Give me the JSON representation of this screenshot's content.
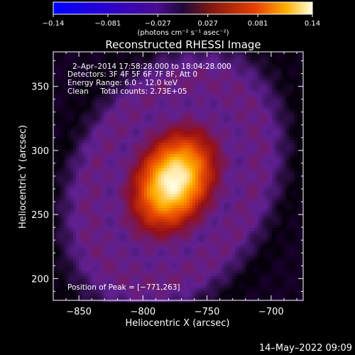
{
  "chart_data": {
    "type": "heatmap",
    "title": "Reconstructed RHESSI Image",
    "xlabel": "Heliocentric X (arcsec)",
    "ylabel": "Heliocentric Y (arcsec)",
    "xlim": [
      -870,
      -675
    ],
    "ylim": [
      183,
      377
    ],
    "xticks": [
      -850,
      -800,
      -750,
      -700
    ],
    "yticks": [
      200,
      250,
      300,
      350
    ],
    "xtick_labels": [
      "−850",
      "−800",
      "−750",
      "−700"
    ],
    "ytick_labels": [
      "200",
      "250",
      "300",
      "350"
    ],
    "colorbar": {
      "range": [
        -0.14,
        0.14
      ],
      "ticks": [
        -0.14,
        -0.081,
        -0.027,
        0.027,
        0.081,
        0.14
      ],
      "tick_labels": [
        "−0.14",
        "−0.081",
        "−0.027",
        "0.027",
        "0.081",
        "0.14"
      ],
      "unit_label": "(photons cm⁻² s⁻¹ asec⁻²)"
    },
    "annotations": [
      "2–Apr–2014 17:58:28.000 to 18:04:28.000",
      "Detectors: 3F 4F 5F 6F 7F 8F, Att 0",
      "Energy Range: 6.0 – 12.0 keV",
      "Clean     Total counts: 2.73E+05"
    ],
    "peak_label": "Position of Peak = [−771,263]",
    "peak": {
      "x": -771,
      "y": 263,
      "value": 0.14
    },
    "source": {
      "center_x": -776,
      "center_y": 276,
      "sigma_major": 28,
      "sigma_minor": 20,
      "tilt_deg": 62
    },
    "ring_level": 0.03,
    "grid": false
  },
  "footer": {
    "timestamp": "14–May–2022 09:09"
  }
}
